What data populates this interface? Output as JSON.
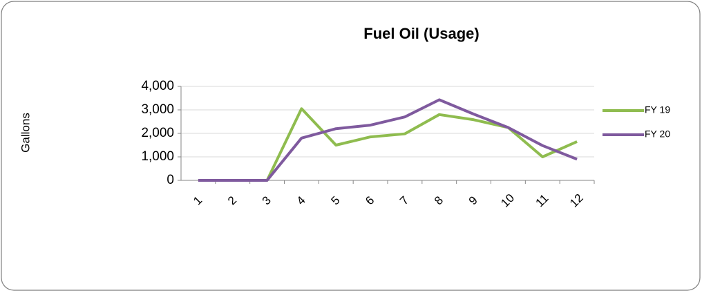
{
  "chart_data": {
    "type": "line",
    "title": "Fuel Oil (Usage)",
    "y_label": "Gallons",
    "categories": [
      "1",
      "2",
      "3",
      "4",
      "5",
      "6",
      "7",
      "8",
      "9",
      "10",
      "11",
      "12"
    ],
    "series": [
      {
        "name": "FY 19",
        "color": "#8fbc4f",
        "values": [
          0,
          0,
          0,
          3050,
          1500,
          1850,
          1980,
          2800,
          2580,
          2250,
          1000,
          1650
        ]
      },
      {
        "name": "FY 20",
        "color": "#7f5a9e",
        "values": [
          0,
          0,
          0,
          1800,
          2200,
          2350,
          2700,
          3430,
          2820,
          2250,
          1480,
          900
        ]
      }
    ],
    "ylim": [
      0,
      4000
    ],
    "yticks": [
      0,
      {
        "value": 1000,
        "label": "1,000"
      },
      {
        "value": 2000,
        "label": "2,000"
      },
      {
        "value": 3000,
        "label": "3,000"
      },
      {
        "value": 4000,
        "label": "4,000"
      }
    ],
    "grid": true,
    "legend": "right"
  }
}
